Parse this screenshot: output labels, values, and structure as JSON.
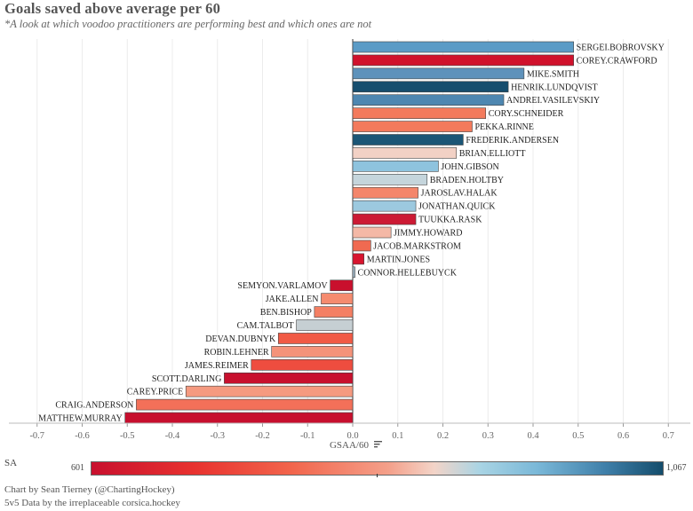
{
  "chart_data": {
    "type": "bar",
    "orientation": "horizontal",
    "title": "Goals saved above average per 60",
    "subtitle": "*A look at which voodoo practitioners are performing best and which ones are not",
    "xlabel": "GSAA/60",
    "xlim": [
      -0.75,
      0.75
    ],
    "xticks": [
      -0.7,
      -0.6,
      -0.5,
      -0.4,
      -0.3,
      -0.2,
      -0.1,
      0.0,
      0.1,
      0.2,
      0.3,
      0.4,
      0.5,
      0.6,
      0.7
    ],
    "xtick_labels": [
      "-0.7",
      "-0.6",
      "-0.5",
      "-0.4",
      "-0.3",
      "-0.2",
      "-0.1",
      "0.0",
      "0.1",
      "0.2",
      "0.3",
      "0.4",
      "0.5",
      "0.6",
      "0.7"
    ],
    "grid": true,
    "color_legend": {
      "title": "SA",
      "min_label": "601",
      "max_label": "1,067",
      "min_color": "#c8102e",
      "max_color": "#144d6c"
    },
    "bars": [
      {
        "name": "SERGEI.BOBROVSKY",
        "value": 0.49,
        "color": "#5b9bc6"
      },
      {
        "name": "COREY.CRAWFORD",
        "value": 0.49,
        "color": "#d0122c"
      },
      {
        "name": "MIKE.SMITH",
        "value": 0.38,
        "color": "#5e92bb"
      },
      {
        "name": "HENRIK.LUNDQVIST",
        "value": 0.345,
        "color": "#174e6e"
      },
      {
        "name": "ANDREI.VASILEVSKIY",
        "value": 0.335,
        "color": "#4e87b1"
      },
      {
        "name": "CORY.SCHNEIDER",
        "value": 0.295,
        "color": "#f37a5c"
      },
      {
        "name": "PEKKA.RINNE",
        "value": 0.265,
        "color": "#f37a5c"
      },
      {
        "name": "FREDERIK.ANDERSEN",
        "value": 0.245,
        "color": "#1b5676"
      },
      {
        "name": "BRIAN.ELLIOTT",
        "value": 0.23,
        "color": "#f2d1c5"
      },
      {
        "name": "JOHN.GIBSON",
        "value": 0.19,
        "color": "#8ec3de"
      },
      {
        "name": "BRADEN.HOLTBY",
        "value": 0.165,
        "color": "#c5d5dc"
      },
      {
        "name": "JAROSLAV.HALAK",
        "value": 0.145,
        "color": "#f4866b"
      },
      {
        "name": "JONATHAN.QUICK",
        "value": 0.14,
        "color": "#9cc9df"
      },
      {
        "name": "TUUKKA.RASK",
        "value": 0.14,
        "color": "#cc1a34"
      },
      {
        "name": "JIMMY.HOWARD",
        "value": 0.085,
        "color": "#f4b8a6"
      },
      {
        "name": "JACOB.MARKSTROM",
        "value": 0.04,
        "color": "#f06a51"
      },
      {
        "name": "MARTIN.JONES",
        "value": 0.025,
        "color": "#d8152f"
      },
      {
        "name": "CONNOR.HELLEBUYCK",
        "value": 0.005,
        "color": "#9fb5c4"
      },
      {
        "name": "SEMYON.VARLAMOV",
        "value": -0.05,
        "color": "#c9102d"
      },
      {
        "name": "JAKE.ALLEN",
        "value": -0.07,
        "color": "#f58b6f"
      },
      {
        "name": "BEN.BISHOP",
        "value": -0.085,
        "color": "#f47f63"
      },
      {
        "name": "CAM.TALBOT",
        "value": -0.125,
        "color": "#c6cfd3"
      },
      {
        "name": "DEVAN.DUBNYK",
        "value": -0.165,
        "color": "#f15a45"
      },
      {
        "name": "ROBIN.LEHNER",
        "value": -0.18,
        "color": "#f4937a"
      },
      {
        "name": "JAMES.REIMER",
        "value": -0.225,
        "color": "#ee4d3f"
      },
      {
        "name": "SCOTT.DARLING",
        "value": -0.285,
        "color": "#c8102e"
      },
      {
        "name": "CAREY.PRICE",
        "value": -0.37,
        "color": "#f59a80"
      },
      {
        "name": "CRAIG.ANDERSON",
        "value": -0.48,
        "color": "#f37059"
      },
      {
        "name": "MATTHEW.MURRAY",
        "value": -0.505,
        "color": "#c70f2e"
      }
    ]
  },
  "credits": {
    "line1": "Chart by Sean Tierney (@ChartingHockey)",
    "line2": "5v5 Data by the irreplaceable corsica.hockey"
  }
}
